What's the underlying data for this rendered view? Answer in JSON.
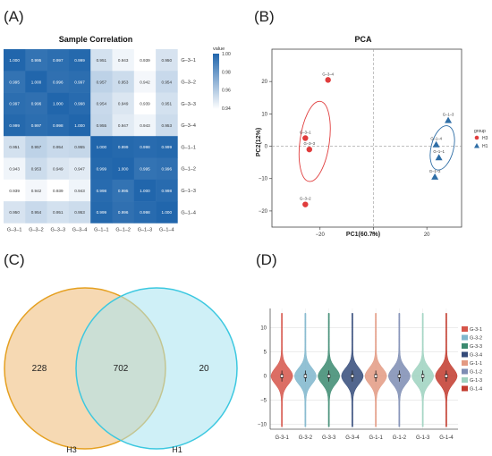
{
  "panel_labels": [
    "(A)",
    "(B)",
    "(C)",
    "(D)"
  ],
  "chart_data": [
    {
      "type": "heatmap",
      "title": "Sample Correlation",
      "row_labels": [
        "G–3–1",
        "G–3–2",
        "G–3–3",
        "G–3–4",
        "G–1–1",
        "G–1–2",
        "G–1–3",
        "G–1–4"
      ],
      "col_labels": [
        "G–3–1",
        "G–3–2",
        "G–3–3",
        "G–3–4",
        "G–1–1",
        "G–1–2",
        "G–1–3",
        "G–1–4"
      ],
      "values": [
        [
          "1.000",
          "0.995",
          "0.997",
          "0.999",
          "0.951",
          "0.943",
          "0.939",
          "0.950"
        ],
        [
          "0.995",
          "1.000",
          "0.996",
          "0.997",
          "0.957",
          "0.953",
          "0.942",
          "0.954"
        ],
        [
          "0.997",
          "0.996",
          "1.000",
          "0.998",
          "0.954",
          "0.949",
          "0.939",
          "0.951"
        ],
        [
          "0.999",
          "0.997",
          "0.998",
          "1.000",
          "0.955",
          "0.947",
          "0.943",
          "0.953"
        ],
        [
          "0.951",
          "0.957",
          "0.954",
          "0.955",
          "1.000",
          "0.999",
          "0.998",
          "0.999"
        ],
        [
          "0.943",
          "0.953",
          "0.949",
          "0.947",
          "0.999",
          "1.000",
          "0.995",
          "0.996"
        ],
        [
          "0.939",
          "0.942",
          "0.939",
          "0.943",
          "0.998",
          "0.995",
          "1.000",
          "0.998"
        ],
        [
          "0.950",
          "0.954",
          "0.951",
          "0.953",
          "0.999",
          "0.996",
          "0.998",
          "1.000"
        ]
      ],
      "colorbar": {
        "title": "value",
        "range": [
          0.939,
          1.0
        ],
        "ticks": [
          "1.00",
          "0.98",
          "0.96",
          "0.94"
        ],
        "colors": [
          "#ffffff",
          "#2166ac"
        ]
      }
    },
    {
      "type": "scatter",
      "title": "PCA",
      "xlabel": "PC1(60.7%)",
      "ylabel": "PC2(12%)",
      "xlim": [
        -38,
        33
      ],
      "ylim": [
        -25,
        30
      ],
      "xticks": [
        "−20",
        "0",
        "20"
      ],
      "yticks": [
        "20",
        "10",
        "0",
        "−10",
        "−20"
      ],
      "legend": {
        "title": "group",
        "position": "right"
      },
      "series": [
        {
          "name": "H3",
          "color": "#e03c3c",
          "marker": "circle",
          "points": [
            {
              "label": "G–3–4",
              "x": -17,
              "y": 20.5
            },
            {
              "label": "G–3–1",
              "x": -25.5,
              "y": 2.5
            },
            {
              "label": "G–3–3",
              "x": -24,
              "y": -1
            },
            {
              "label": "G–3–2",
              "x": -25.5,
              "y": -18
            }
          ],
          "ellipse": {
            "cx": -22,
            "cy": 1.5,
            "rx": 5.5,
            "ry": 25,
            "angle": 8
          }
        },
        {
          "name": "H1",
          "color": "#2f6ea6",
          "marker": "triangle",
          "points": [
            {
              "label": "G–1–3",
              "x": 28,
              "y": 8
            },
            {
              "label": "G–1–4",
              "x": 23.5,
              "y": 0.5
            },
            {
              "label": "G–1–1",
              "x": 24.5,
              "y": -3.5
            },
            {
              "label": "G–1–2",
              "x": 23,
              "y": -9.5
            }
          ],
          "ellipse": {
            "cx": 25.8,
            "cy": -0.5,
            "rx": 4.2,
            "ry": 14,
            "angle": 14
          }
        }
      ]
    },
    {
      "type": "venn",
      "sets": [
        {
          "name": "H3",
          "only": 228,
          "color": "#f0c080",
          "stroke": "#e5a020"
        },
        {
          "name": "H1",
          "only": 20,
          "color": "#a8e4f0",
          "stroke": "#3cc8e0"
        }
      ],
      "intersection": 702
    },
    {
      "type": "violin",
      "categories": [
        "G-3-1",
        "G-3-2",
        "G-3-3",
        "G-3-4",
        "G-1-1",
        "G-1-2",
        "G-1-3",
        "G-1-4"
      ],
      "legend_entries": [
        "G-3-1",
        "G-3-2",
        "G-3-3",
        "G-3-4",
        "G-1-1",
        "G-1-2",
        "G-1-3",
        "G-1-4"
      ],
      "colors": [
        "#d6554a",
        "#7fb6cc",
        "#3b8a70",
        "#344b7a",
        "#e39a83",
        "#7d8cb3",
        "#9ed2bf",
        "#c23a2d"
      ],
      "ylim": [
        -11,
        14
      ],
      "yticks": [
        "10",
        "5",
        "0",
        "−5",
        "−10"
      ],
      "grid": true,
      "range": [
        -10.5,
        13
      ],
      "median": 0,
      "iqr": [
        -0.4,
        0.4
      ]
    }
  ]
}
